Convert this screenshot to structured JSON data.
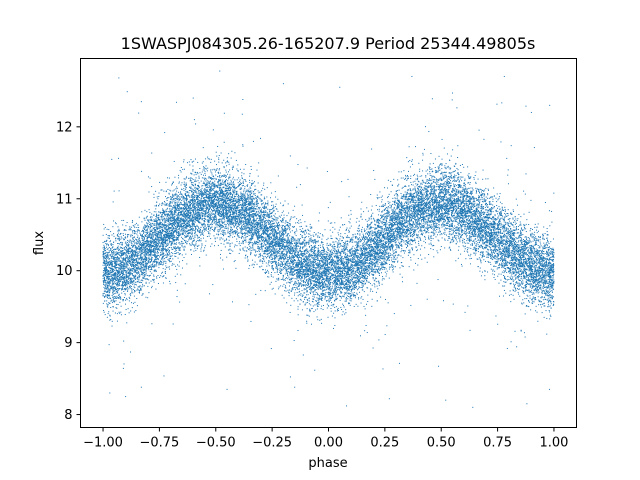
{
  "chart_data": {
    "type": "scatter",
    "title": "1SWASPJ084305.26-165207.9 Period 25344.49805s",
    "xlabel": "phase",
    "ylabel": "flux",
    "xlim": [
      -1.1,
      1.1
    ],
    "ylim": [
      7.82,
      12.95
    ],
    "x_ticks": [
      -1.0,
      -0.75,
      -0.5,
      -0.25,
      0.0,
      0.25,
      0.5,
      0.75,
      1.0
    ],
    "x_tick_labels": [
      "−1.00",
      "−0.75",
      "−0.50",
      "−0.25",
      "0.00",
      "0.25",
      "0.50",
      "0.75",
      "1.00"
    ],
    "y_ticks": [
      8,
      9,
      10,
      11,
      12
    ],
    "y_tick_labels": [
      "8",
      "9",
      "10",
      "11",
      "12"
    ],
    "grid": false,
    "legend": "none",
    "point_color": "#1f77b4",
    "series": [
      {
        "phase_range": [
          -1.0,
          1.0
        ],
        "model": "flux = 10.45 - 0.48*cos(2*pi*phase)",
        "baseline": 10.45,
        "amplitude": 0.48,
        "minima_phase": [
          -1.0,
          0.0,
          1.0
        ],
        "maxima_phase": [
          -0.5,
          0.5
        ],
        "scatter_sigma": 0.25,
        "n_points": 20000,
        "outliers": [
          [
            -0.93,
            12.68
          ],
          [
            -0.83,
            12.35
          ],
          [
            -0.6,
            12.4
          ],
          [
            -0.38,
            12.38
          ],
          [
            -0.2,
            12.6
          ],
          [
            0.05,
            12.55
          ],
          [
            0.37,
            12.7
          ],
          [
            0.55,
            12.47
          ],
          [
            0.78,
            12.7
          ],
          [
            0.9,
            12.2
          ],
          [
            -0.97,
            8.3
          ],
          [
            -0.9,
            8.25
          ],
          [
            -0.83,
            8.38
          ],
          [
            -0.45,
            8.35
          ],
          [
            -0.15,
            8.38
          ],
          [
            0.08,
            8.12
          ],
          [
            0.27,
            8.22
          ],
          [
            0.52,
            8.2
          ],
          [
            0.64,
            8.1
          ],
          [
            0.88,
            8.15
          ],
          [
            0.98,
            8.35
          ]
        ]
      }
    ]
  }
}
